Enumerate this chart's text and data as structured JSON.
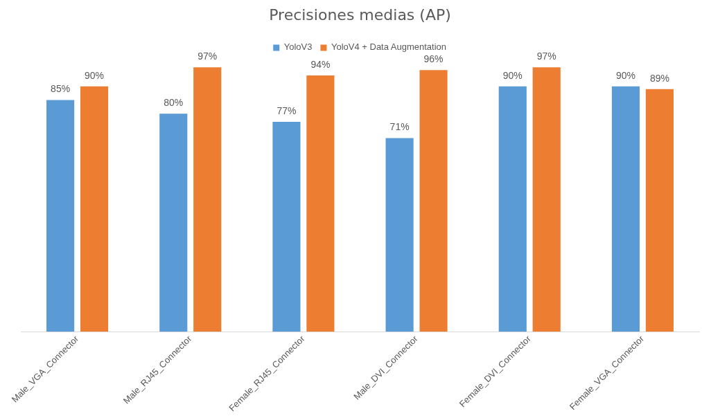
{
  "chart_data": {
    "type": "bar",
    "title": "Precisiones medias (AP)",
    "categories": [
      "Male_VGA_Connector",
      "Male_RJ45_Connector",
      "Female_RJ45_Connector",
      "Male_DVI_Connector",
      "Female_DVI_Connector",
      "Female_VGA_Connector"
    ],
    "series": [
      {
        "name": "YoloV3",
        "color": "#5b9bd5",
        "values": [
          85,
          80,
          77,
          71,
          90,
          90
        ],
        "value_labels": [
          "85%",
          "80%",
          "77%",
          "71%",
          "90%",
          "90%"
        ]
      },
      {
        "name": "YoloV4 + Data Augmentation",
        "color": "#ed7d31",
        "values": [
          90,
          97,
          94,
          96,
          97,
          89
        ],
        "value_labels": [
          "90%",
          "97%",
          "94%",
          "96%",
          "97%",
          "89%"
        ]
      }
    ],
    "tick_labels": "x",
    "grid": false,
    "legend": "top"
  }
}
